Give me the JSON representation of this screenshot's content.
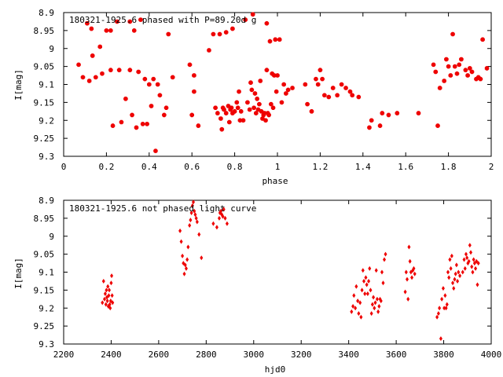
{
  "chart_data": [
    {
      "type": "scatter",
      "title": "180321-1925.6 phased with P=89.20d g",
      "xlabel": "phase",
      "ylabel": "I[mag]",
      "xlim": [
        0,
        2
      ],
      "ylim": [
        8.9,
        9.3
      ],
      "y_inverted": true,
      "x_ticks": [
        "0",
        "0.2",
        "0.4",
        "0.6",
        "0.8",
        "1",
        "1.2",
        "1.4",
        "1.6",
        "1.8",
        "2"
      ],
      "y_ticks": [
        "8.9",
        "8.95",
        "9",
        "9.05",
        "9.1",
        "9.15",
        "9.2",
        "9.25",
        "9.3"
      ],
      "marker_color": "#ee0000",
      "points": [
        [
          0.07,
          9.045
        ],
        [
          0.09,
          9.08
        ],
        [
          0.11,
          8.93
        ],
        [
          0.12,
          9.09
        ],
        [
          0.13,
          8.945
        ],
        [
          0.135,
          9.02
        ],
        [
          0.15,
          9.08
        ],
        [
          0.17,
          8.995
        ],
        [
          0.18,
          9.07
        ],
        [
          0.2,
          8.95
        ],
        [
          0.22,
          8.95
        ],
        [
          0.22,
          9.06
        ],
        [
          0.23,
          9.215
        ],
        [
          0.25,
          8.925
        ],
        [
          0.26,
          9.06
        ],
        [
          0.27,
          9.205
        ],
        [
          0.29,
          9.14
        ],
        [
          0.31,
          8.925
        ],
        [
          0.31,
          9.06
        ],
        [
          0.32,
          9.185
        ],
        [
          0.33,
          8.95
        ],
        [
          0.34,
          9.22
        ],
        [
          0.35,
          9.065
        ],
        [
          0.36,
          8.92
        ],
        [
          0.37,
          9.21
        ],
        [
          0.38,
          9.085
        ],
        [
          0.39,
          9.21
        ],
        [
          0.4,
          9.1
        ],
        [
          0.41,
          9.16
        ],
        [
          0.42,
          9.085
        ],
        [
          0.43,
          9.285
        ],
        [
          0.44,
          9.1
        ],
        [
          0.45,
          9.13
        ],
        [
          0.47,
          9.185
        ],
        [
          0.48,
          9.165
        ],
        [
          0.49,
          8.96
        ],
        [
          0.51,
          9.08
        ],
        [
          0.59,
          9.045
        ],
        [
          0.6,
          9.185
        ],
        [
          0.61,
          9.075
        ],
        [
          0.61,
          9.12
        ],
        [
          0.63,
          9.215
        ],
        [
          0.68,
          9.005
        ],
        [
          0.7,
          8.96
        ],
        [
          0.71,
          9.165
        ],
        [
          0.72,
          9.18
        ],
        [
          0.73,
          8.96
        ],
        [
          0.735,
          9.195
        ],
        [
          0.74,
          9.225
        ],
        [
          0.745,
          9.165
        ],
        [
          0.75,
          9.17
        ],
        [
          0.76,
          8.955
        ],
        [
          0.76,
          9.18
        ],
        [
          0.77,
          9.16
        ],
        [
          0.775,
          9.205
        ],
        [
          0.78,
          9.17
        ],
        [
          0.785,
          9.165
        ],
        [
          0.79,
          8.945
        ],
        [
          0.79,
          9.18
        ],
        [
          0.8,
          9.175
        ],
        [
          0.81,
          9.15
        ],
        [
          0.815,
          9.165
        ],
        [
          0.82,
          9.12
        ],
        [
          0.825,
          9.2
        ],
        [
          0.83,
          9.175
        ],
        [
          0.84,
          9.2
        ],
        [
          0.85,
          8.92
        ],
        [
          0.86,
          9.15
        ],
        [
          0.87,
          9.17
        ],
        [
          0.875,
          9.095
        ],
        [
          0.88,
          9.115
        ],
        [
          0.885,
          8.905
        ],
        [
          0.89,
          9.165
        ],
        [
          0.895,
          9.125
        ],
        [
          0.9,
          9.18
        ],
        [
          0.905,
          9.14
        ],
        [
          0.91,
          9.17
        ],
        [
          0.915,
          9.155
        ],
        [
          0.92,
          9.09
        ],
        [
          0.925,
          9.175
        ],
        [
          0.93,
          9.195
        ],
        [
          0.935,
          9.185
        ],
        [
          0.94,
          9.18
        ],
        [
          0.945,
          9.2
        ],
        [
          0.95,
          8.93
        ],
        [
          0.95,
          9.06
        ],
        [
          0.955,
          9.18
        ],
        [
          0.96,
          9.185
        ],
        [
          0.965,
          8.98
        ],
        [
          0.97,
          9.155
        ],
        [
          0.975,
          9.07
        ],
        [
          0.98,
          9.165
        ],
        [
          0.985,
          9.075
        ],
        [
          0.99,
          8.975
        ],
        [
          0.995,
          9.12
        ],
        [
          1.0,
          9.075
        ],
        [
          1.01,
          8.975
        ],
        [
          1.02,
          9.15
        ],
        [
          1.03,
          9.1
        ],
        [
          1.04,
          9.125
        ],
        [
          1.05,
          9.115
        ],
        [
          1.07,
          9.11
        ],
        [
          1.13,
          9.1
        ],
        [
          1.14,
          9.155
        ],
        [
          1.16,
          9.175
        ],
        [
          1.18,
          9.085
        ],
        [
          1.19,
          9.1
        ],
        [
          1.2,
          9.06
        ],
        [
          1.21,
          9.085
        ],
        [
          1.22,
          9.13
        ],
        [
          1.24,
          9.135
        ],
        [
          1.26,
          9.11
        ],
        [
          1.28,
          9.13
        ],
        [
          1.3,
          9.1
        ],
        [
          1.32,
          9.11
        ],
        [
          1.34,
          9.12
        ],
        [
          1.35,
          9.13
        ],
        [
          1.38,
          9.135
        ],
        [
          1.43,
          9.22
        ],
        [
          1.44,
          9.2
        ],
        [
          1.48,
          9.215
        ],
        [
          1.49,
          9.18
        ],
        [
          1.52,
          9.185
        ],
        [
          1.56,
          9.18
        ],
        [
          1.66,
          9.18
        ],
        [
          1.73,
          9.045
        ],
        [
          1.74,
          9.065
        ],
        [
          1.75,
          9.215
        ],
        [
          1.76,
          9.11
        ],
        [
          1.78,
          9.09
        ],
        [
          1.79,
          9.03
        ],
        [
          1.8,
          9.05
        ],
        [
          1.81,
          9.075
        ],
        [
          1.82,
          8.96
        ],
        [
          1.83,
          9.05
        ],
        [
          1.84,
          9.07
        ],
        [
          1.85,
          9.045
        ],
        [
          1.86,
          9.03
        ],
        [
          1.88,
          9.06
        ],
        [
          1.89,
          9.075
        ],
        [
          1.9,
          9.055
        ],
        [
          1.91,
          9.065
        ],
        [
          1.93,
          9.085
        ],
        [
          1.94,
          9.08
        ],
        [
          1.95,
          9.085
        ],
        [
          1.96,
          8.975
        ],
        [
          1.98,
          9.055
        ]
      ]
    },
    {
      "type": "scatter",
      "title": "180321-1925.6 not phased light curve",
      "xlabel": "hjd0",
      "ylabel": "I[mag]",
      "xlim": [
        2200,
        4000
      ],
      "ylim": [
        8.9,
        9.3
      ],
      "y_inverted": true,
      "x_ticks": [
        "2200",
        "2400",
        "2600",
        "2800",
        "3000",
        "3200",
        "3400",
        "3600",
        "3800",
        "4000"
      ],
      "y_ticks": [
        "8.9",
        "8.95",
        "9",
        "9.05",
        "9.1",
        "9.15",
        "9.2",
        "9.25",
        "9.3"
      ],
      "marker_color": "#ee0000",
      "points": [
        [
          2363,
          9.185
        ],
        [
          2368,
          9.125
        ],
        [
          2372,
          9.175
        ],
        [
          2375,
          9.16
        ],
        [
          2378,
          9.19
        ],
        [
          2380,
          9.15
        ],
        [
          2382,
          9.17
        ],
        [
          2384,
          9.18
        ],
        [
          2386,
          9.14
        ],
        [
          2388,
          9.195
        ],
        [
          2390,
          9.165
        ],
        [
          2392,
          9.15
        ],
        [
          2394,
          9.19
        ],
        [
          2396,
          9.2
        ],
        [
          2398,
          9.18
        ],
        [
          2400,
          9.13
        ],
        [
          2402,
          9.11
        ],
        [
          2404,
          9.165
        ],
        [
          2406,
          9.185
        ],
        [
          2690,
          8.985
        ],
        [
          2695,
          9.015
        ],
        [
          2700,
          9.055
        ],
        [
          2704,
          9.075
        ],
        [
          2708,
          9.105
        ],
        [
          2712,
          9.08
        ],
        [
          2716,
          9.09
        ],
        [
          2720,
          9.065
        ],
        [
          2724,
          9.03
        ],
        [
          2730,
          8.97
        ],
        [
          2734,
          8.955
        ],
        [
          2738,
          8.935
        ],
        [
          2742,
          8.915
        ],
        [
          2746,
          8.905
        ],
        [
          2750,
          8.93
        ],
        [
          2754,
          8.94
        ],
        [
          2758,
          8.95
        ],
        [
          2762,
          8.96
        ],
        [
          2770,
          8.995
        ],
        [
          2780,
          9.06
        ],
        [
          2830,
          8.965
        ],
        [
          2845,
          8.975
        ],
        [
          2855,
          8.95
        ],
        [
          2858,
          8.935
        ],
        [
          2862,
          8.93
        ],
        [
          2866,
          8.94
        ],
        [
          2870,
          8.945
        ],
        [
          2874,
          8.925
        ],
        [
          2880,
          8.95
        ],
        [
          2888,
          8.965
        ],
        [
          3412,
          9.21
        ],
        [
          3418,
          9.195
        ],
        [
          3422,
          9.165
        ],
        [
          3428,
          9.2
        ],
        [
          3432,
          9.14
        ],
        [
          3438,
          9.18
        ],
        [
          3442,
          9.215
        ],
        [
          3448,
          9.185
        ],
        [
          3452,
          9.225
        ],
        [
          3456,
          9.15
        ],
        [
          3460,
          9.095
        ],
        [
          3464,
          9.125
        ],
        [
          3468,
          9.16
        ],
        [
          3472,
          9.115
        ],
        [
          3476,
          9.135
        ],
        [
          3480,
          9.16
        ],
        [
          3484,
          9.125
        ],
        [
          3488,
          9.09
        ],
        [
          3492,
          9.15
        ],
        [
          3496,
          9.215
        ],
        [
          3500,
          9.19
        ],
        [
          3504,
          9.17
        ],
        [
          3508,
          9.2
        ],
        [
          3512,
          9.185
        ],
        [
          3516,
          9.095
        ],
        [
          3520,
          9.175
        ],
        [
          3524,
          9.21
        ],
        [
          3528,
          9.195
        ],
        [
          3532,
          9.175
        ],
        [
          3536,
          9.18
        ],
        [
          3540,
          9.1
        ],
        [
          3545,
          9.13
        ],
        [
          3550,
          9.065
        ],
        [
          3555,
          9.05
        ],
        [
          3638,
          9.155
        ],
        [
          3642,
          9.1
        ],
        [
          3646,
          9.12
        ],
        [
          3650,
          9.175
        ],
        [
          3654,
          9.03
        ],
        [
          3658,
          9.07
        ],
        [
          3662,
          9.1
        ],
        [
          3666,
          9.115
        ],
        [
          3670,
          9.095
        ],
        [
          3674,
          9.09
        ],
        [
          3678,
          9.105
        ],
        [
          3772,
          9.225
        ],
        [
          3778,
          9.215
        ],
        [
          3782,
          9.2
        ],
        [
          3788,
          9.285
        ],
        [
          3792,
          9.175
        ],
        [
          3798,
          9.145
        ],
        [
          3802,
          9.2
        ],
        [
          3806,
          9.165
        ],
        [
          3810,
          9.2
        ],
        [
          3814,
          9.19
        ],
        [
          3818,
          9.1
        ],
        [
          3822,
          9.115
        ],
        [
          3826,
          9.065
        ],
        [
          3830,
          9.09
        ],
        [
          3834,
          9.055
        ],
        [
          3838,
          9.13
        ],
        [
          3842,
          9.145
        ],
        [
          3846,
          9.12
        ],
        [
          3850,
          9.105
        ],
        [
          3854,
          9.08
        ],
        [
          3858,
          9.125
        ],
        [
          3862,
          9.1
        ],
        [
          3868,
          9.11
        ],
        [
          3880,
          9.1
        ],
        [
          3886,
          9.065
        ],
        [
          3890,
          9.09
        ],
        [
          3894,
          9.05
        ],
        [
          3898,
          9.06
        ],
        [
          3902,
          9.075
        ],
        [
          3906,
          9.07
        ],
        [
          3910,
          9.025
        ],
        [
          3914,
          9.045
        ],
        [
          3918,
          9.085
        ],
        [
          3922,
          9.1
        ],
        [
          3926,
          9.065
        ],
        [
          3930,
          9.075
        ],
        [
          3934,
          9.09
        ],
        [
          3938,
          9.07
        ],
        [
          3942,
          9.135
        ],
        [
          3946,
          9.075
        ]
      ]
    }
  ]
}
